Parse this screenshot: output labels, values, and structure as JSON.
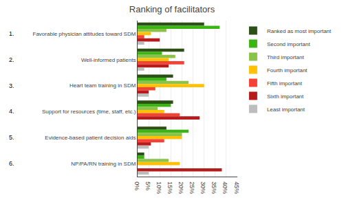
{
  "chart_data": {
    "type": "bar",
    "orientation": "horizontal",
    "title": "Ranking of facilitators",
    "categories": [
      "Favorable physician attitudes toward SDM",
      "Well-informed patients",
      "Heart team training in SDM",
      "Support for resources (time, staff, etc.)",
      "Evidence-based patient decision aids",
      "NP/PA/RN training in SDM"
    ],
    "category_numbers": [
      "1.",
      "2.",
      "3.",
      "4.",
      "5.",
      "6."
    ],
    "series": [
      {
        "name": "Ranked as most important",
        "color": "#2d5016",
        "values": [
          30,
          21,
          16,
          16,
          13,
          3
        ]
      },
      {
        "name": "Second important",
        "color": "#3ab514",
        "values": [
          37,
          11,
          13,
          15,
          23,
          3
        ]
      },
      {
        "name": "Third important",
        "color": "#8bc34a",
        "values": [
          13,
          17,
          23,
          9,
          20,
          14
        ]
      },
      {
        "name": "Fourth important",
        "color": "#ffc107",
        "values": [
          6,
          14,
          30,
          12,
          20,
          19
        ]
      },
      {
        "name": "Fifth important",
        "color": "#f44336",
        "values": [
          3,
          21,
          8,
          19,
          12,
          0
        ]
      },
      {
        "name": "Sixth important",
        "color": "#b71c1c",
        "values": [
          10,
          14,
          5,
          28,
          6,
          38
        ]
      },
      {
        "name": "Least important",
        "color": "#bdbdbd",
        "values": [
          3,
          3,
          5,
          0,
          5,
          5
        ]
      }
    ],
    "xlim": [
      0,
      45
    ],
    "xticks": [
      {
        "value": 0,
        "label": "0%"
      },
      {
        "value": 5,
        "label": "5%"
      },
      {
        "value": 10,
        "label": "10%"
      },
      {
        "value": 15,
        "label": "15%"
      },
      {
        "value": 20,
        "label": "20%"
      },
      {
        "value": 25,
        "label": "25%"
      },
      {
        "value": 30,
        "label": "30%"
      },
      {
        "value": 35,
        "label": "35%"
      },
      {
        "value": 40,
        "label": "40%"
      },
      {
        "value": 45,
        "label": "45%"
      }
    ],
    "grid": true,
    "legend": "right"
  }
}
